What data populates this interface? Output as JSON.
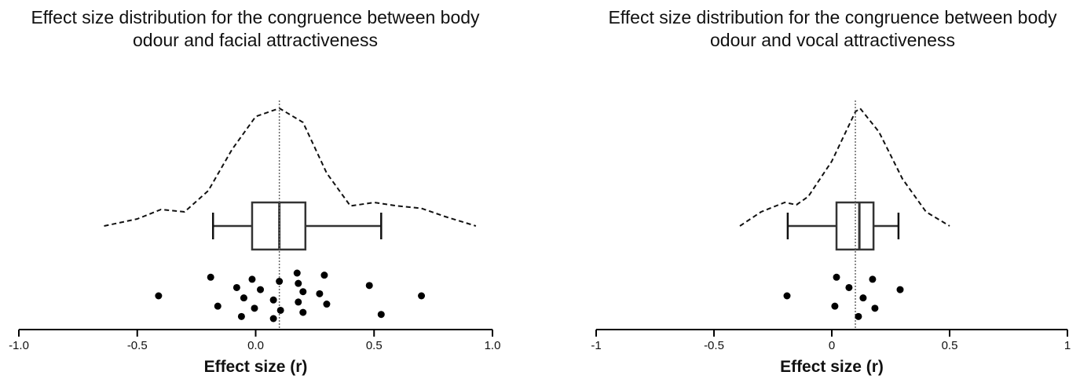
{
  "chart_data": [
    {
      "type": "raincloud",
      "title": "Effect size distribution for the congruence between body odour and facial attractiveness",
      "x_label": "Effect size (r)",
      "xlim": [
        -1,
        1
      ],
      "xticks": [
        {
          "value": -1,
          "label": "-1.0"
        },
        -0.5,
        {
          "value": 0,
          "label": "0.0"
        },
        0.5,
        {
          "value": 1,
          "label": "1.0"
        }
      ],
      "mean": 0.1,
      "box": {
        "min": -0.18,
        "q1": -0.015,
        "median": 0.1,
        "q3": 0.21,
        "max": 0.53
      },
      "density": {
        "x": [
          -0.64,
          -0.5,
          -0.4,
          -0.3,
          -0.2,
          -0.1,
          0.0,
          0.1,
          0.2,
          0.3,
          0.4,
          0.5,
          0.6,
          0.7,
          0.8,
          0.93
        ],
        "values": [
          0,
          0.06,
          0.14,
          0.12,
          0.3,
          0.65,
          0.93,
          1.0,
          0.88,
          0.45,
          0.17,
          0.2,
          0.17,
          0.15,
          0.08,
          0
        ]
      },
      "points": [
        -0.41,
        -0.19,
        -0.16,
        -0.08,
        -0.06,
        -0.05,
        -0.015,
        -0.005,
        0.02,
        0.075,
        0.075,
        0.1,
        0.105,
        0.2,
        0.175,
        0.18,
        0.18,
        0.2,
        0.27,
        0.29,
        0.3,
        0.48,
        0.53,
        0.7
      ]
    },
    {
      "type": "raincloud",
      "title": "Effect size distribution for the congruence between body odour and vocal attractiveness",
      "x_label": "Effect size (r)",
      "xlim": [
        -1,
        1
      ],
      "xticks": [
        -1,
        -0.5,
        0,
        0.5,
        1
      ],
      "mean": 0.1,
      "box": {
        "min": -0.187,
        "q1": 0.02,
        "median": 0.117,
        "q3": 0.177,
        "max": 0.283
      },
      "density": {
        "x": [
          -0.39,
          -0.3,
          -0.2,
          -0.15,
          -0.1,
          0.0,
          0.1,
          0.12,
          0.2,
          0.3,
          0.4,
          0.5
        ],
        "values": [
          0,
          0.12,
          0.2,
          0.18,
          0.25,
          0.55,
          0.97,
          1.0,
          0.8,
          0.4,
          0.12,
          0
        ]
      },
      "points": [
        -0.19,
        0.02,
        0.013,
        0.073,
        0.113,
        0.133,
        0.173,
        0.183,
        0.29
      ]
    }
  ]
}
